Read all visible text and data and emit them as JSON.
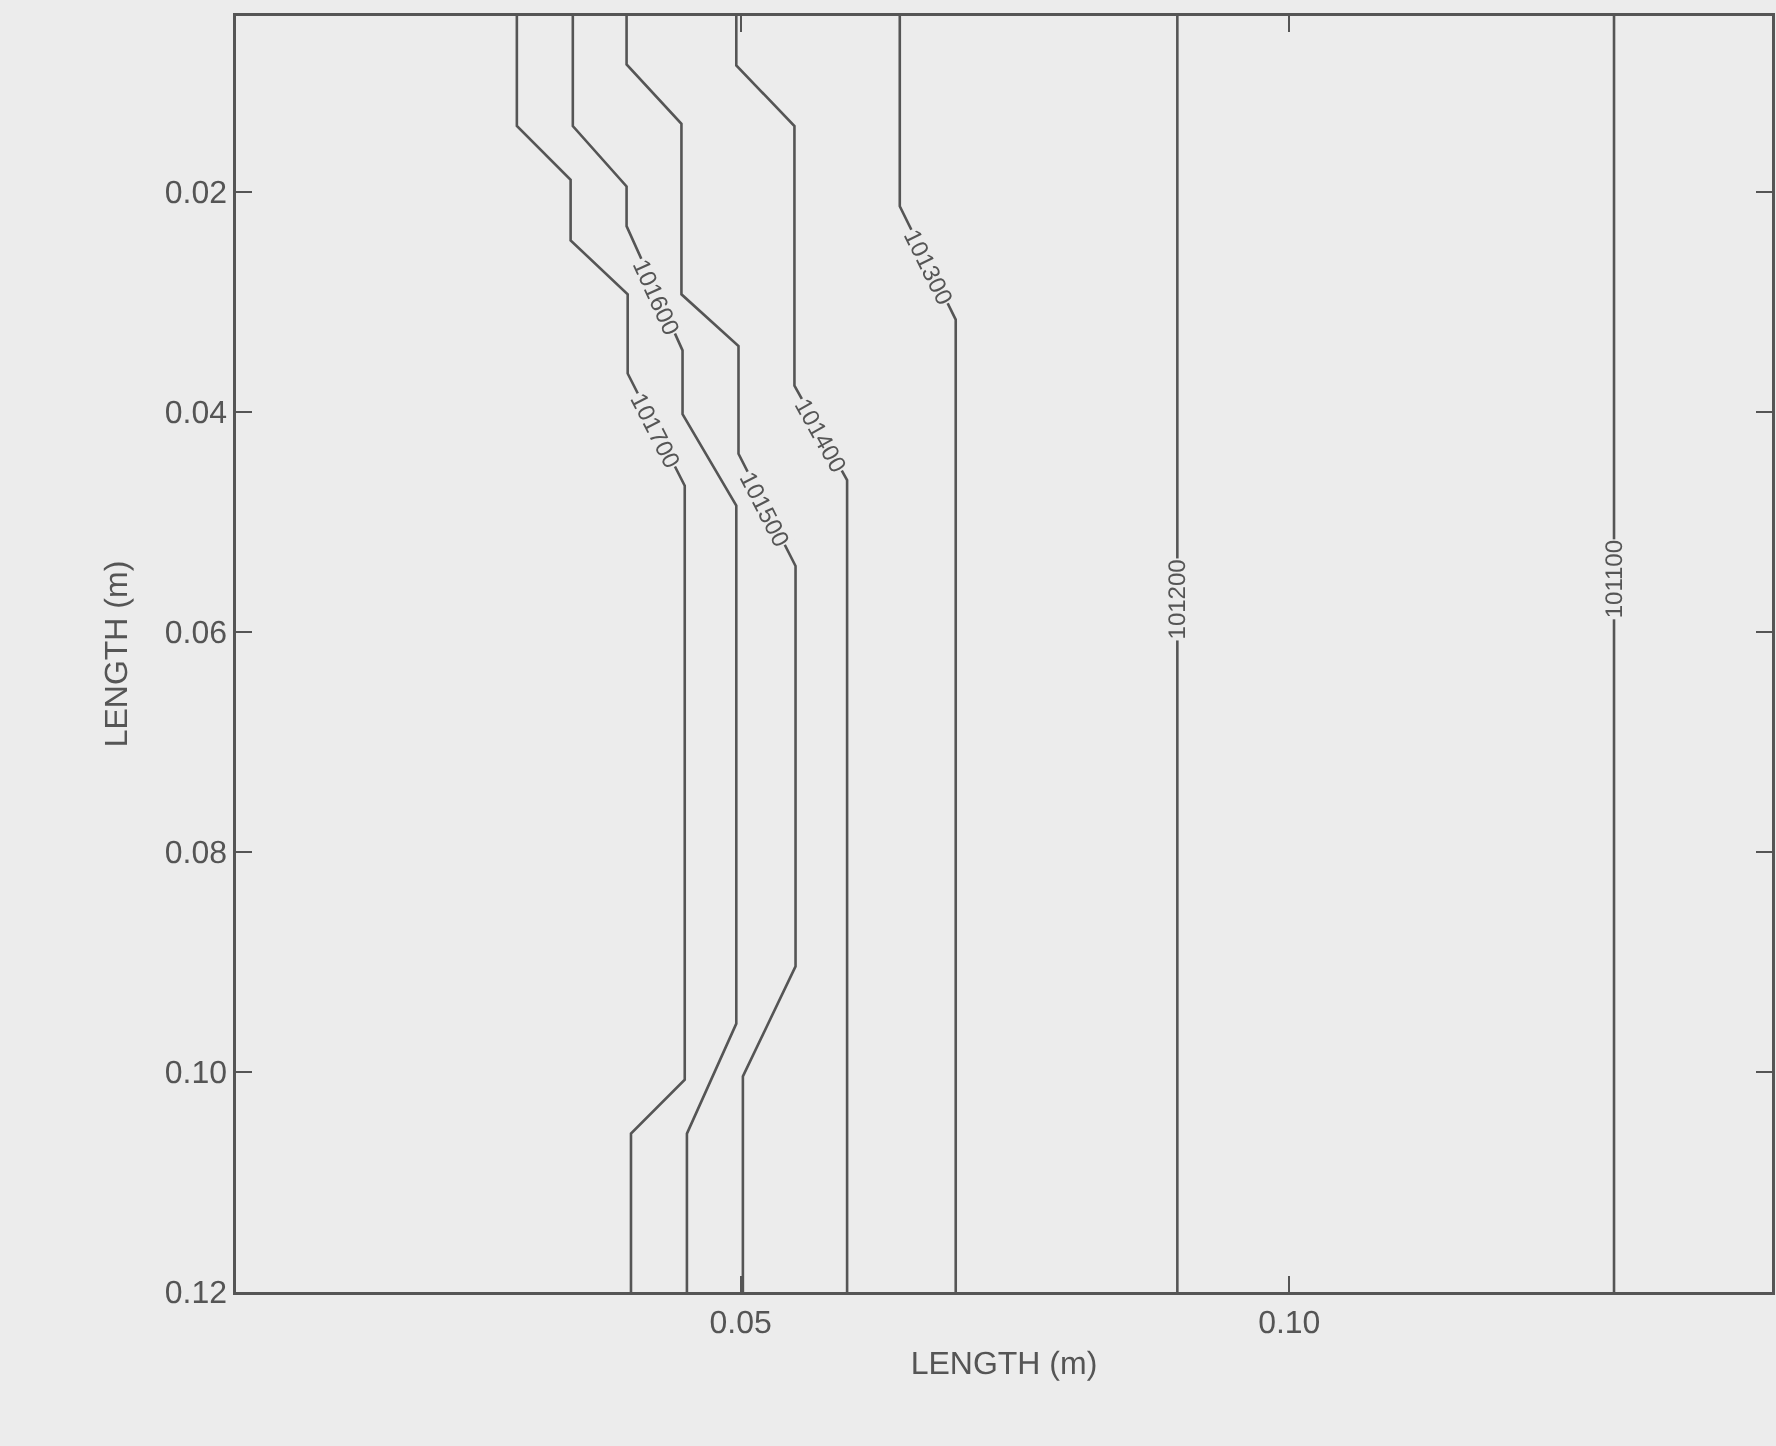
{
  "chart_data": {
    "type": "line",
    "xlabel": "LENGTH (m)",
    "ylabel": "LENGTH (m)",
    "xlim": [
      0.004,
      0.144
    ],
    "ylim": [
      0.12,
      0.004
    ],
    "xticks": [
      {
        "value": 0.05,
        "label": "0.05"
      },
      {
        "value": 0.1,
        "label": "0.10"
      }
    ],
    "yticks": [
      0.02,
      0.04,
      0.06,
      0.08,
      {
        "value": 0.1,
        "label": "0.10"
      },
      0.12
    ],
    "grid": false,
    "marker": "none",
    "line_style": "solid",
    "series": [
      {
        "color": "#555555",
        "x": [
          0.0296,
          0.0296,
          0.0345,
          0.0345,
          0.0397,
          0.0397,
          0.0449,
          0.0449,
          0.04,
          0.04
        ],
        "values": [
          0.004,
          0.014,
          0.0189,
          0.0244,
          0.0293,
          0.0365,
          0.0467,
          0.1007,
          0.1056,
          0.12
        ]
      },
      {
        "color": "#555555",
        "x": [
          0.0347,
          0.0347,
          0.0396,
          0.0396,
          0.0447,
          0.0447,
          0.0496,
          0.0496,
          0.0451,
          0.0451
        ],
        "values": [
          0.004,
          0.014,
          0.0195,
          0.0231,
          0.0344,
          0.0402,
          0.0485,
          0.0956,
          0.1056,
          0.12
        ]
      },
      {
        "color": "#555555",
        "x": [
          0.0396,
          0.0396,
          0.0446,
          0.0446,
          0.0498,
          0.0498,
          0.055,
          0.055,
          0.0502,
          0.0502
        ],
        "values": [
          0.004,
          0.0084,
          0.0138,
          0.0293,
          0.034,
          0.0438,
          0.054,
          0.0904,
          0.1004,
          0.12
        ]
      },
      {
        "color": "#555555",
        "x": [
          0.0496,
          0.0496,
          0.0549,
          0.0549,
          0.0597,
          0.0597
        ],
        "values": [
          0.004,
          0.0085,
          0.014,
          0.0376,
          0.0462,
          0.12
        ]
      },
      {
        "color": "#555555",
        "x": [
          0.0645,
          0.0645,
          0.0696,
          0.0696
        ],
        "values": [
          0.004,
          0.0213,
          0.0316,
          0.12
        ]
      },
      {
        "color": "#555555",
        "x": [
          0.0898,
          0.0898
        ],
        "values": [
          0.004,
          0.12
        ]
      },
      {
        "color": "#555555",
        "x": [
          0.1296,
          0.1296
        ],
        "values": [
          0.004,
          0.12
        ]
      }
    ],
    "annotations": [
      {
        "text": "101700",
        "x": 0.0422,
        "y": 0.0416
      },
      {
        "text": "101600",
        "x": 0.0422,
        "y": 0.0295
      },
      {
        "text": "101500",
        "x": 0.0522,
        "y": 0.0489
      },
      {
        "text": "101400",
        "x": 0.0573,
        "y": 0.0422
      },
      {
        "text": "101300",
        "x": 0.067,
        "y": 0.0268
      },
      {
        "text": "101200",
        "x": 0.0898,
        "y": 0.0571
      },
      {
        "text": "101100",
        "x": 0.1296,
        "y": 0.0553
      }
    ]
  }
}
